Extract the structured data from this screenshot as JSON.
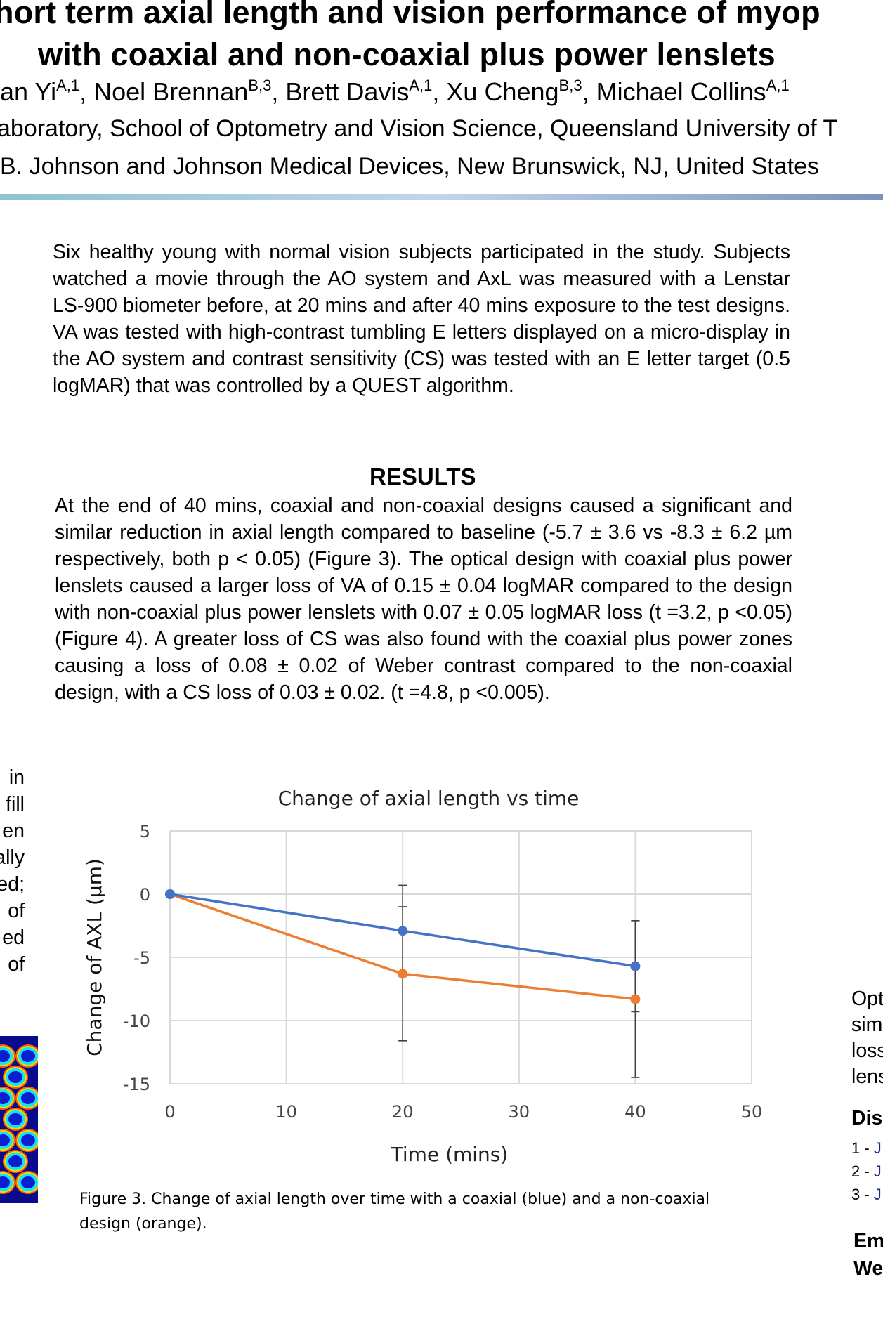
{
  "header": {
    "title_line1": "hort term axial length and vision performance of myop",
    "title_line2": "with coaxial and non-coaxial plus power lenslets",
    "authors": [
      {
        "name": "an Yi",
        "sup": "A,1"
      },
      {
        "name": "Noel Brennan",
        "sup": "B,3"
      },
      {
        "name": "Brett Davis",
        "sup": "A,1"
      },
      {
        "name": "Xu Cheng",
        "sup": "B,3"
      },
      {
        "name": "Michael Collins",
        "sup": "A,1"
      }
    ],
    "affiliation_a": "aboratory, School of Optometry and Vision Science, Queensland University of T",
    "affiliation_b": "B. Johnson and Johnson Medical Devices, New Brunswick, NJ, United States"
  },
  "methods": {
    "text": "Six healthy young with normal vision subjects participated in the study. Subjects watched a movie through the AO system and AxL was measured with a Lenstar LS-900 biometer before, at 20 mins and after 40 mins exposure to the test designs. VA was tested with high-contrast tumbling E letters displayed on a micro-display in the AO system and contrast sensitivity (CS) was tested with an E letter target (0.5 logMAR) that was controlled by a QUEST algorithm."
  },
  "results": {
    "heading": "RESULTS",
    "text": "At the end of 40 mins, coaxial and non-coaxial designs caused a significant and similar reduction in axial length compared to baseline (-5.7 ± 3.6 vs -8.3 ± 6.2 µm respectively, both p < 0.05) (Figure 3). The optical design with coaxial plus power lenslets caused a larger loss of VA of 0.15 ± 0.04 logMAR compared to the design with non-coaxial plus power lenslets with 0.07 ± 0.05 logMAR loss (t =3.2, p <0.05) (Figure 4). A greater loss of CS was also found with the coaxial plus power zones causing a loss of 0.08 ± 0.02 of Weber contrast compared to the non-coaxial design, with a CS loss of 0.03 ± 0.02. (t =4.8, p <0.005)."
  },
  "left_column_fragments": [
    "in",
    "fill",
    "en",
    "ally",
    "ed;",
    "of",
    "ed",
    "of"
  ],
  "right_column": {
    "conclusion_fragments": [
      "Opt",
      "sim",
      "loss",
      "lens"
    ],
    "disclosure_heading": "Dis",
    "refs": [
      {
        "num": "1 - ",
        "j": "J"
      },
      {
        "num": "2 - ",
        "j": "J"
      },
      {
        "num": "3 - ",
        "j": "J"
      }
    ],
    "contact": [
      "Em",
      "We"
    ]
  },
  "figure": {
    "caption": "Figure 3. Change of axial length over time with a coaxial (blue) and a non-coaxial design (orange)."
  },
  "chart_data": {
    "type": "line",
    "title": "Change of axial length vs time",
    "xlabel": "Time (mins)",
    "ylabel": "Change of AXL (µm)",
    "xlim": [
      0,
      50
    ],
    "ylim": [
      -15,
      5
    ],
    "xticks": [
      0,
      10,
      20,
      30,
      40,
      50
    ],
    "yticks": [
      5,
      0,
      -5,
      -10,
      -15
    ],
    "grid": true,
    "series": [
      {
        "color": "#4472c4",
        "x": [
          0,
          20,
          40
        ],
        "y": [
          0,
          -2.9,
          -5.7
        ],
        "err": [
          0,
          3.6,
          3.6
        ]
      },
      {
        "color": "#ed7d31",
        "x": [
          0,
          20,
          40
        ],
        "y": [
          0,
          -6.3,
          -8.3
        ],
        "err": [
          0,
          5.3,
          6.2
        ]
      }
    ]
  }
}
